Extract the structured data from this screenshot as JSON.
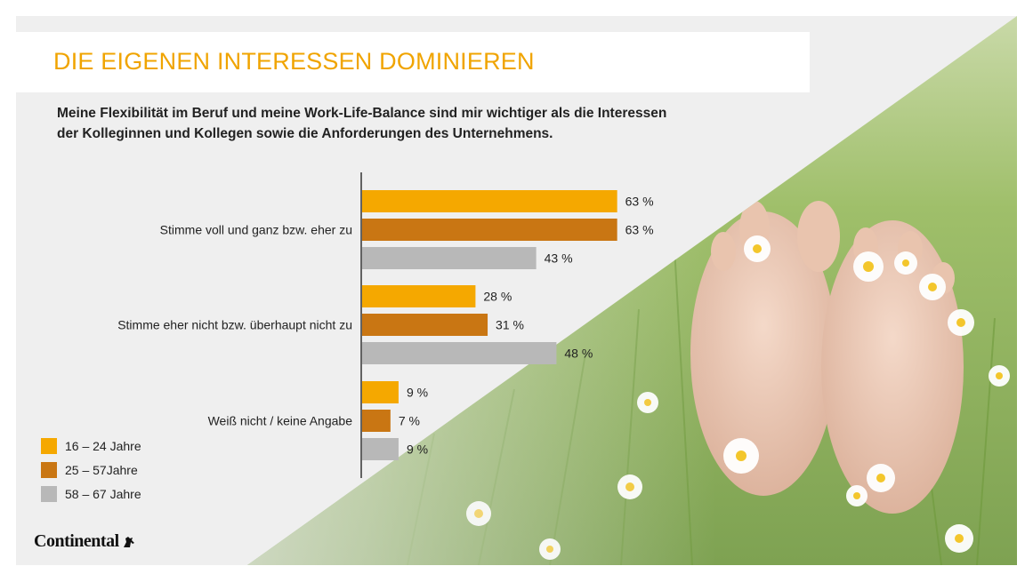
{
  "title": "DIE EIGENEN INTERESSEN DOMINIEREN",
  "subtitle": "Meine Flexibilität im Beruf und meine Work-Life-Balance sind mir wichtiger als die Interessen der Kolleginnen und Kollegen sowie die Anforderungen des Unternehmens.",
  "logo_text": "Continental",
  "colors": {
    "accent": "#f0a400",
    "series": [
      "#f5a800",
      "#c97613",
      "#b8b8b8"
    ],
    "photo_grass": "#9fbf6a"
  },
  "chart_data": {
    "type": "bar",
    "orientation": "horizontal",
    "categories": [
      "Stimme voll und ganz bzw. eher zu",
      "Stimme eher nicht bzw. überhaupt nicht zu",
      "Weiß nicht / keine Angabe"
    ],
    "series": [
      {
        "name": "16 – 24 Jahre",
        "values": [
          63,
          28,
          9
        ],
        "labels": [
          "63 %",
          "28 %",
          "9 %"
        ],
        "color": "#f5a800"
      },
      {
        "name": "25 – 57Jahre",
        "values": [
          63,
          31,
          7
        ],
        "labels": [
          "63 %",
          "31 %",
          "7 %"
        ],
        "color": "#c97613"
      },
      {
        "name": "58 – 67 Jahre",
        "values": [
          43,
          48,
          9
        ],
        "labels": [
          "43 %",
          "48 %",
          "9 %"
        ],
        "color": "#b8b8b8"
      }
    ],
    "unit": "%",
    "xlim": [
      0,
      100
    ],
    "legend_position": "bottom-left",
    "grid": false
  }
}
